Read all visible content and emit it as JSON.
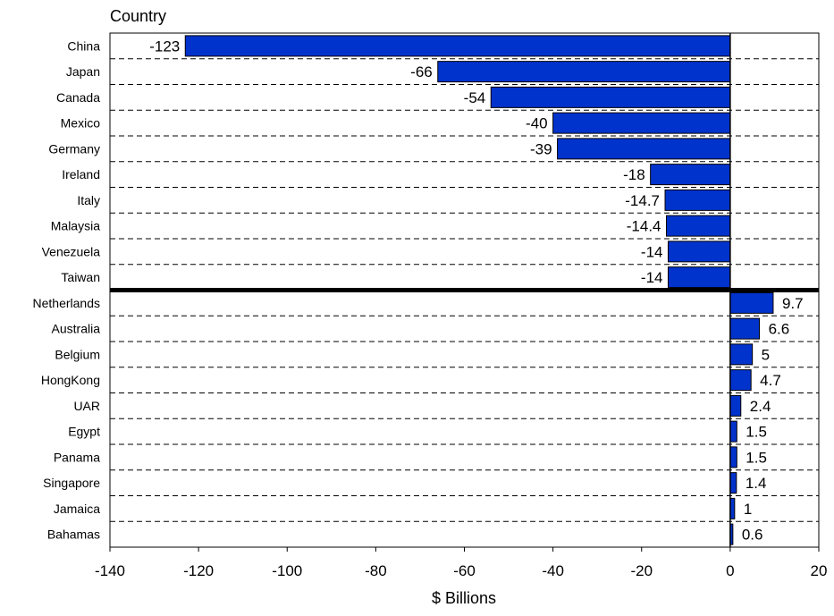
{
  "chart_data": {
    "type": "bar",
    "orientation": "horizontal",
    "title": "Country",
    "xlabel": "$ Billions",
    "ylabel": "",
    "xlim": [
      -140,
      20
    ],
    "xticks": [
      -140,
      -120,
      -100,
      -80,
      -60,
      -40,
      -20,
      0,
      20
    ],
    "grid": "horizontal dashed",
    "bar_color": "#0033CC",
    "categories": [
      "China",
      "Japan",
      "Canada",
      "Mexico",
      "Germany",
      "Ireland",
      "Italy",
      "Malaysia",
      "Venezuela",
      "Taiwan",
      "Netherlands",
      "Australia",
      "Belgium",
      "HongKong",
      "UAR",
      "Egypt",
      "Panama",
      "Singapore",
      "Jamaica",
      "Bahamas"
    ],
    "values": [
      -123,
      -66,
      -54,
      -40,
      -39,
      -18,
      -14.7,
      -14.4,
      -14,
      -14,
      9.7,
      6.6,
      5,
      4.7,
      2.4,
      1.5,
      1.5,
      1.4,
      1,
      0.6
    ],
    "value_labels": [
      "-123",
      "-66",
      "-54",
      "-40",
      "-39",
      "-18",
      "-14.7",
      "-14.4",
      "-14",
      "-14",
      "9.7",
      "6.6",
      "5",
      "4.7",
      "2.4",
      "1.5",
      "1.5",
      "1.4",
      "1",
      "0.6"
    ],
    "separator_after_index": 9
  }
}
